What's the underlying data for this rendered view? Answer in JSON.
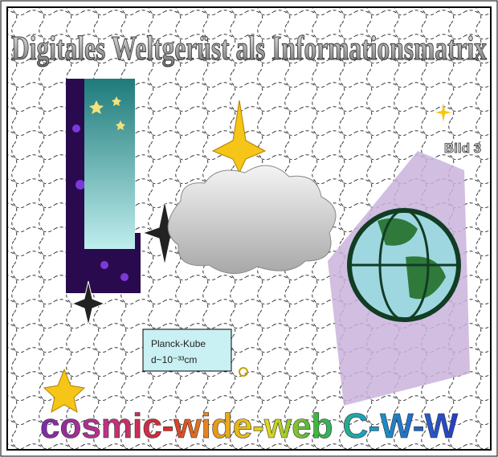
{
  "title": "Digitales Weltgerüst als Informationsmatrix",
  "figure_label": "Bild 3",
  "box": {
    "title": "Planck-Kube",
    "size": "d~10⁻³³cm"
  },
  "footer": "cosmic-wide-web C-W-W"
}
